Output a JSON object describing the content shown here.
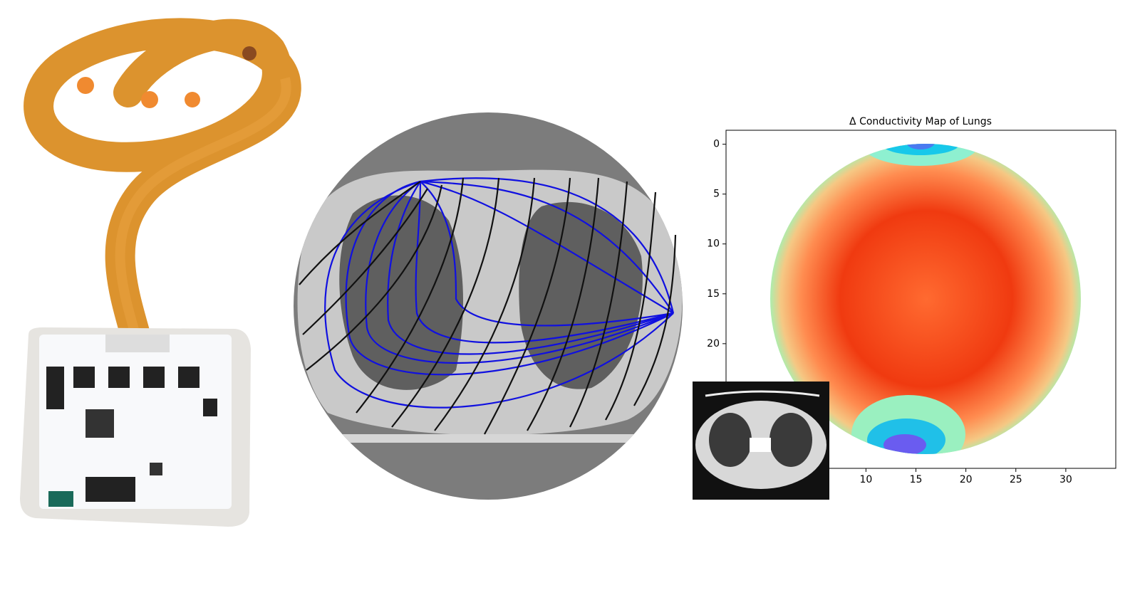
{
  "chart_data": {
    "type": "heatmap",
    "title": "Δ Conductivity Map of Lungs",
    "xlim": [
      -4,
      35
    ],
    "ylim": [
      32.5,
      -1.4
    ],
    "xticks": [
      10,
      15,
      20,
      25,
      30
    ],
    "yticks": [
      0,
      5,
      10,
      15,
      20
    ]
  }
}
